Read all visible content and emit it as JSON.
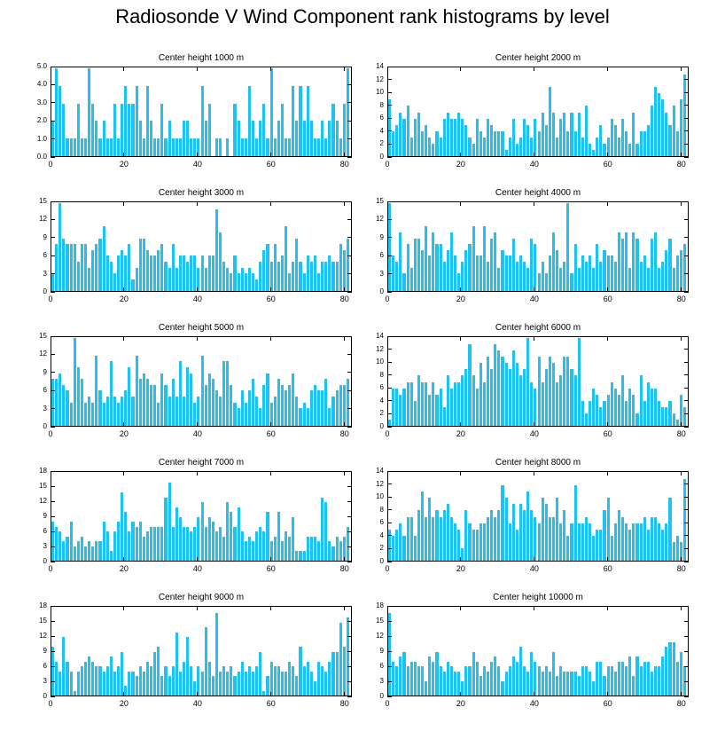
{
  "figure": {
    "title": "Radiosonde V Wind Component rank histograms by level",
    "bar_color": "#1ec1f0"
  },
  "chart_data": [
    {
      "type": "bar",
      "title": "Center height 1000 m",
      "xlim": [
        0,
        82
      ],
      "ylim": [
        0,
        5
      ],
      "yticks": [
        "0.0",
        "1.0",
        "2.0",
        "3.0",
        "4.0",
        "5.0"
      ],
      "xticks": [
        "0",
        "20",
        "40",
        "60",
        "80"
      ],
      "values": [
        2,
        5,
        4,
        3,
        1,
        1,
        1,
        3,
        1,
        1,
        5,
        3,
        2,
        1,
        2,
        1,
        1,
        3,
        1,
        3,
        4,
        3,
        3,
        4,
        2,
        1,
        4,
        2,
        1,
        1,
        3,
        1,
        2,
        1,
        1,
        1,
        2,
        2,
        1,
        1,
        1,
        4,
        2,
        3,
        0,
        1,
        1,
        0,
        1,
        0,
        3,
        2,
        1,
        1,
        4,
        2,
        1,
        2,
        3,
        1,
        5,
        1,
        2,
        3,
        1,
        1,
        4,
        2,
        4,
        2,
        4,
        2,
        1,
        1,
        2,
        1,
        2,
        3,
        2,
        1,
        3,
        5
      ]
    },
    {
      "type": "bar",
      "title": "Center height 2000 m",
      "xlim": [
        0,
        82
      ],
      "ylim": [
        0,
        14
      ],
      "yticks": [
        "0",
        "2",
        "4",
        "6",
        "8",
        "10",
        "12",
        "14"
      ],
      "xticks": [
        "0",
        "20",
        "40",
        "60",
        "80"
      ],
      "values": [
        9,
        4,
        5,
        7,
        6,
        8,
        3,
        6,
        7,
        4,
        5,
        3,
        2,
        4,
        3,
        6,
        7,
        6,
        6,
        7,
        6,
        5,
        3,
        2,
        6,
        4,
        3,
        6,
        5,
        4,
        4,
        4,
        1,
        3,
        6,
        2,
        3,
        6,
        5,
        3,
        6,
        4,
        7,
        5,
        11,
        7,
        3,
        6,
        7,
        4,
        7,
        4,
        7,
        3,
        8,
        2,
        1,
        3,
        5,
        2,
        3,
        6,
        5,
        3,
        6,
        4,
        2,
        7,
        2,
        4,
        4,
        5,
        8,
        11,
        10,
        9,
        7,
        5,
        8,
        4,
        9,
        13
      ]
    },
    {
      "type": "bar",
      "title": "Center height 3000 m",
      "xlim": [
        0,
        82
      ],
      "ylim": [
        0,
        15
      ],
      "yticks": [
        "0",
        "3",
        "6",
        "9",
        "12",
        "15"
      ],
      "xticks": [
        "0",
        "20",
        "40",
        "60",
        "80"
      ],
      "values": [
        3,
        8,
        15,
        9,
        8,
        8,
        8,
        5,
        8,
        8,
        4,
        7,
        8,
        9,
        11,
        6,
        5,
        3,
        6,
        7,
        6,
        8,
        2,
        4,
        9,
        9,
        7,
        6,
        6,
        7,
        8,
        5,
        4,
        8,
        4,
        6,
        6,
        5,
        6,
        6,
        4,
        6,
        4,
        6,
        6,
        14,
        10,
        5,
        4,
        3,
        6,
        3,
        4,
        3,
        4,
        3,
        2,
        5,
        7,
        8,
        5,
        8,
        5,
        6,
        11,
        3,
        5,
        9,
        5,
        3,
        6,
        5,
        6,
        3,
        5,
        5,
        6,
        5,
        5,
        8,
        7,
        9
      ]
    },
    {
      "type": "bar",
      "title": "Center height 4000 m",
      "xlim": [
        0,
        82
      ],
      "ylim": [
        0,
        15
      ],
      "yticks": [
        "0",
        "3",
        "6",
        "9",
        "12",
        "15"
      ],
      "xticks": [
        "0",
        "20",
        "40",
        "60",
        "80"
      ],
      "values": [
        15,
        6,
        5,
        10,
        3,
        8,
        4,
        9,
        9,
        7,
        11,
        6,
        10,
        8,
        8,
        5,
        7,
        10,
        6,
        3,
        5,
        7,
        8,
        11,
        6,
        6,
        11,
        5,
        9,
        10,
        4,
        7,
        6,
        6,
        9,
        5,
        6,
        5,
        4,
        9,
        8,
        3,
        5,
        3,
        6,
        10,
        7,
        4,
        5,
        15,
        3,
        8,
        4,
        6,
        5,
        6,
        4,
        8,
        5,
        7,
        6,
        6,
        5,
        10,
        9,
        10,
        4,
        10,
        9,
        5,
        6,
        4,
        9,
        10,
        4,
        5,
        7,
        9,
        4,
        6,
        7,
        8
      ]
    },
    {
      "type": "bar",
      "title": "Center height 5000 m",
      "xlim": [
        0,
        82
      ],
      "ylim": [
        0,
        15
      ],
      "yticks": [
        "0",
        "3",
        "6",
        "9",
        "12",
        "15"
      ],
      "xticks": [
        "0",
        "20",
        "40",
        "60",
        "80"
      ],
      "values": [
        8,
        8,
        9,
        7,
        6,
        4,
        15,
        10,
        8,
        4,
        5,
        4,
        12,
        6,
        4,
        5,
        11,
        5,
        4,
        5,
        6,
        10,
        5,
        12,
        8,
        9,
        8,
        7,
        7,
        4,
        9,
        7,
        5,
        8,
        5,
        11,
        5,
        10,
        9,
        4,
        5,
        12,
        7,
        9,
        8,
        6,
        5,
        11,
        11,
        7,
        4,
        3,
        6,
        4,
        6,
        8,
        5,
        3,
        7,
        9,
        4,
        5,
        8,
        7,
        6,
        7,
        9,
        5,
        3,
        4,
        3,
        6,
        7,
        6,
        6,
        8,
        3,
        5,
        6,
        7,
        7,
        8
      ]
    },
    {
      "type": "bar",
      "title": "Center height 6000 m",
      "xlim": [
        0,
        82
      ],
      "ylim": [
        0,
        14
      ],
      "yticks": [
        "0",
        "2",
        "4",
        "6",
        "8",
        "10",
        "12",
        "14"
      ],
      "xticks": [
        "0",
        "20",
        "40",
        "60",
        "80"
      ],
      "values": [
        1,
        6,
        6,
        5,
        6,
        7,
        7,
        4,
        8,
        7,
        7,
        5,
        7,
        5,
        6,
        3,
        8,
        6,
        7,
        7,
        8,
        9,
        13,
        8,
        6,
        10,
        7,
        11,
        9,
        13,
        12,
        11,
        10,
        9,
        12,
        10,
        8,
        9,
        14,
        7,
        6,
        11,
        7,
        9,
        11,
        10,
        7,
        8,
        11,
        11,
        9,
        8,
        14,
        4,
        2,
        4,
        6,
        5,
        3,
        4,
        5,
        7,
        6,
        5,
        8,
        4,
        6,
        5,
        2,
        8,
        4,
        7,
        6,
        6,
        4,
        3,
        3,
        4,
        2,
        1,
        5,
        3
      ]
    },
    {
      "type": "bar",
      "title": "Center height 7000 m",
      "xlim": [
        0,
        82
      ],
      "ylim": [
        0,
        18
      ],
      "yticks": [
        "0",
        "3",
        "6",
        "9",
        "12",
        "15",
        "18"
      ],
      "xticks": [
        "0",
        "20",
        "40",
        "60",
        "80"
      ],
      "values": [
        8,
        7,
        6,
        4,
        5,
        8,
        3,
        4,
        5,
        3,
        4,
        3,
        4,
        4,
        8,
        6,
        2,
        6,
        8,
        14,
        10,
        6,
        8,
        7,
        8,
        5,
        6,
        7,
        7,
        7,
        7,
        13,
        16,
        7,
        11,
        9,
        7,
        7,
        6,
        7,
        9,
        12,
        7,
        9,
        8,
        6,
        7,
        5,
        12,
        10,
        7,
        11,
        6,
        4,
        5,
        4,
        6,
        7,
        6,
        10,
        4,
        5,
        10,
        4,
        6,
        5,
        9,
        2,
        2,
        2,
        5,
        5,
        5,
        4,
        13,
        12,
        4,
        3,
        5,
        4,
        5,
        7
      ]
    },
    {
      "type": "bar",
      "title": "Center height 8000 m",
      "xlim": [
        0,
        82
      ],
      "ylim": [
        0,
        14
      ],
      "yticks": [
        "0",
        "2",
        "4",
        "6",
        "8",
        "10",
        "12",
        "14"
      ],
      "xticks": [
        "0",
        "20",
        "40",
        "60",
        "80"
      ],
      "values": [
        5,
        4,
        5,
        6,
        4,
        7,
        7,
        4,
        8,
        11,
        7,
        10,
        7,
        8,
        7,
        8,
        9,
        7,
        6,
        5,
        2,
        8,
        6,
        5,
        5,
        6,
        6,
        7,
        8,
        7,
        8,
        12,
        10,
        6,
        9,
        5,
        9,
        8,
        11,
        8,
        7,
        6,
        10,
        9,
        7,
        7,
        10,
        6,
        8,
        4,
        6,
        12,
        6,
        6,
        7,
        6,
        4,
        5,
        5,
        8,
        10,
        4,
        6,
        8,
        7,
        6,
        5,
        6,
        6,
        6,
        7,
        5,
        7,
        7,
        6,
        5,
        6,
        10,
        3,
        4,
        3,
        13
      ]
    },
    {
      "type": "bar",
      "title": "Center height 9000 m",
      "xlim": [
        0,
        82
      ],
      "ylim": [
        0,
        18
      ],
      "yticks": [
        "0",
        "3",
        "6",
        "9",
        "12",
        "15",
        "18"
      ],
      "xticks": [
        "0",
        "20",
        "40",
        "60",
        "80"
      ],
      "values": [
        10,
        7,
        5,
        12,
        7,
        5,
        1,
        5,
        6,
        7,
        8,
        7,
        6,
        6,
        5,
        6,
        8,
        5,
        6,
        9,
        2,
        5,
        5,
        4,
        6,
        5,
        7,
        6,
        9,
        10,
        4,
        6,
        4,
        6,
        13,
        5,
        7,
        12,
        6,
        3,
        6,
        5,
        14,
        7,
        4,
        17,
        5,
        6,
        5,
        6,
        4,
        5,
        7,
        5,
        6,
        5,
        6,
        9,
        1,
        4,
        7,
        6,
        6,
        5,
        5,
        7,
        6,
        4,
        10,
        6,
        7,
        5,
        3,
        7,
        6,
        5,
        7,
        9,
        9,
        15,
        10,
        16
      ]
    },
    {
      "type": "bar",
      "title": "Center height 10000 m",
      "xlim": [
        0,
        82
      ],
      "ylim": [
        0,
        18
      ],
      "yticks": [
        "0",
        "3",
        "6",
        "9",
        "12",
        "15",
        "18"
      ],
      "xticks": [
        "0",
        "20",
        "40",
        "60",
        "80"
      ],
      "values": [
        17,
        7,
        6,
        8,
        9,
        6,
        7,
        7,
        6,
        6,
        3,
        8,
        7,
        9,
        6,
        5,
        7,
        6,
        5,
        5,
        3,
        6,
        6,
        9,
        7,
        4,
        6,
        5,
        7,
        8,
        6,
        3,
        5,
        6,
        8,
        7,
        10,
        6,
        5,
        9,
        7,
        6,
        5,
        6,
        5,
        9,
        4,
        6,
        5,
        5,
        5,
        5,
        4,
        6,
        6,
        5,
        3,
        7,
        7,
        4,
        6,
        6,
        5,
        7,
        7,
        6,
        8,
        4,
        8,
        6,
        7,
        7,
        5,
        6,
        6,
        8,
        10,
        11,
        11,
        7,
        9,
        6
      ]
    }
  ]
}
